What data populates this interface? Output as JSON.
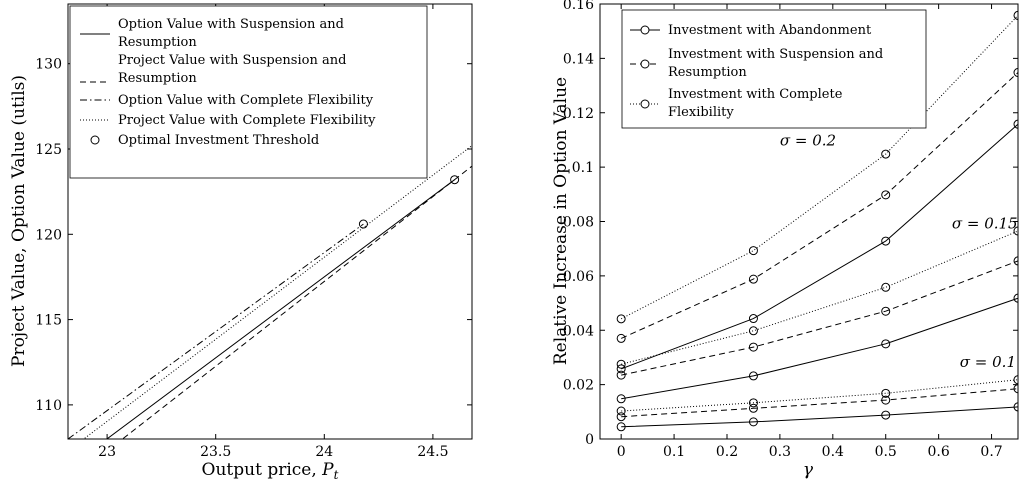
{
  "chart_data": [
    {
      "type": "line",
      "xlabel": "Output price, ",
      "xlabel_sym": "P",
      "xlabel_sub": "t",
      "ylabel": "Project Value, Option Value (utils)",
      "xlim": [
        22.82,
        24.68
      ],
      "ylim": [
        108.0,
        133.5
      ],
      "xticks": [
        23,
        23.5,
        24,
        24.5
      ],
      "xtick_labels": [
        "23",
        "23.5",
        "24",
        "24.5"
      ],
      "yticks": [
        110,
        115,
        120,
        125,
        130
      ],
      "ytick_labels": [
        "110",
        "115",
        "120",
        "125",
        "130"
      ],
      "grid": false,
      "legend_position": "top-left",
      "series": [
        {
          "name": "Option Value with Suspension and Resumption",
          "style": "solid",
          "x": [
            22.82,
            24.6
          ],
          "y": [
            106.3,
            123.2
          ]
        },
        {
          "name": "Project Value with Suspension and Resumption",
          "style": "dashed",
          "x": [
            22.82,
            24.68
          ],
          "y": [
            105.5,
            124.0
          ]
        },
        {
          "name": "Option Value with Complete Flexibility",
          "style": "dashdot",
          "x": [
            22.82,
            24.18
          ],
          "y": [
            108.0,
            120.6
          ]
        },
        {
          "name": "Project Value with Complete Flexibility",
          "style": "dotted",
          "x": [
            22.82,
            24.68
          ],
          "y": [
            107.3,
            125.2
          ]
        },
        {
          "name": "Optimal Investment Threshold",
          "style": "marker",
          "x": [
            24.18,
            24.6
          ],
          "y": [
            120.6,
            123.2
          ]
        }
      ]
    },
    {
      "type": "line",
      "xlabel": "γ",
      "ylabel": "Relative Increase in Option Value",
      "xlim": [
        -0.04,
        0.75
      ],
      "ylim": [
        0,
        0.16
      ],
      "xticks": [
        0,
        0.1,
        0.2,
        0.3,
        0.4,
        0.5,
        0.6,
        0.7
      ],
      "xtick_labels": [
        "0",
        "0.1",
        "0.2",
        "0.3",
        "0.4",
        "0.5",
        "0.6",
        "0.7"
      ],
      "yticks": [
        0,
        0.02,
        0.04,
        0.06,
        0.08,
        0.1,
        0.12,
        0.14,
        0.16
      ],
      "ytick_labels": [
        "0",
        "0.02",
        "0.04",
        "0.06",
        "0.08",
        "0.1",
        "0.12",
        "0.14",
        "0.16"
      ],
      "grid": false,
      "legend_position": "top-left",
      "x": [
        0,
        0.25,
        0.5,
        0.75
      ],
      "legend": [
        {
          "name": "Investment with Abandonment",
          "style": "solid"
        },
        {
          "name": "Investment with Suspension and Resumption",
          "style": "dashed"
        },
        {
          "name": "Investment with Complete Flexibility",
          "style": "dotted"
        }
      ],
      "series": [
        {
          "style": "solid",
          "group": "σ = 0.1",
          "values": [
            0.0045,
            0.0063,
            0.0088,
            0.0118
          ]
        },
        {
          "style": "dashed",
          "group": "σ = 0.1",
          "values": [
            0.0082,
            0.0113,
            0.0143,
            0.0185
          ]
        },
        {
          "style": "dotted",
          "group": "σ = 0.1",
          "values": [
            0.0103,
            0.0133,
            0.0168,
            0.0218
          ]
        },
        {
          "style": "solid",
          "group": "σ = 0.15",
          "values": [
            0.0148,
            0.0232,
            0.035,
            0.0518
          ]
        },
        {
          "style": "dashed",
          "group": "σ = 0.15",
          "values": [
            0.0235,
            0.0338,
            0.047,
            0.0655
          ]
        },
        {
          "style": "dotted",
          "group": "σ = 0.15",
          "values": [
            0.0275,
            0.0398,
            0.0558,
            0.0765
          ]
        },
        {
          "style": "solid",
          "group": "σ = 0.2",
          "values": [
            0.0258,
            0.0443,
            0.0728,
            0.1158
          ]
        },
        {
          "style": "dashed",
          "group": "σ = 0.2",
          "values": [
            0.037,
            0.0588,
            0.0898,
            0.1348
          ]
        },
        {
          "style": "dotted",
          "group": "σ = 0.2",
          "values": [
            0.0442,
            0.0693,
            0.1048,
            0.1558
          ]
        }
      ],
      "annotations": [
        {
          "text": "σ = 0.2",
          "x": 0.3,
          "y": 0.108
        },
        {
          "text": "σ = 0.15",
          "x": 0.625,
          "y": 0.0775
        },
        {
          "text": "σ = 0.1",
          "x": 0.64,
          "y": 0.0265
        }
      ]
    }
  ]
}
